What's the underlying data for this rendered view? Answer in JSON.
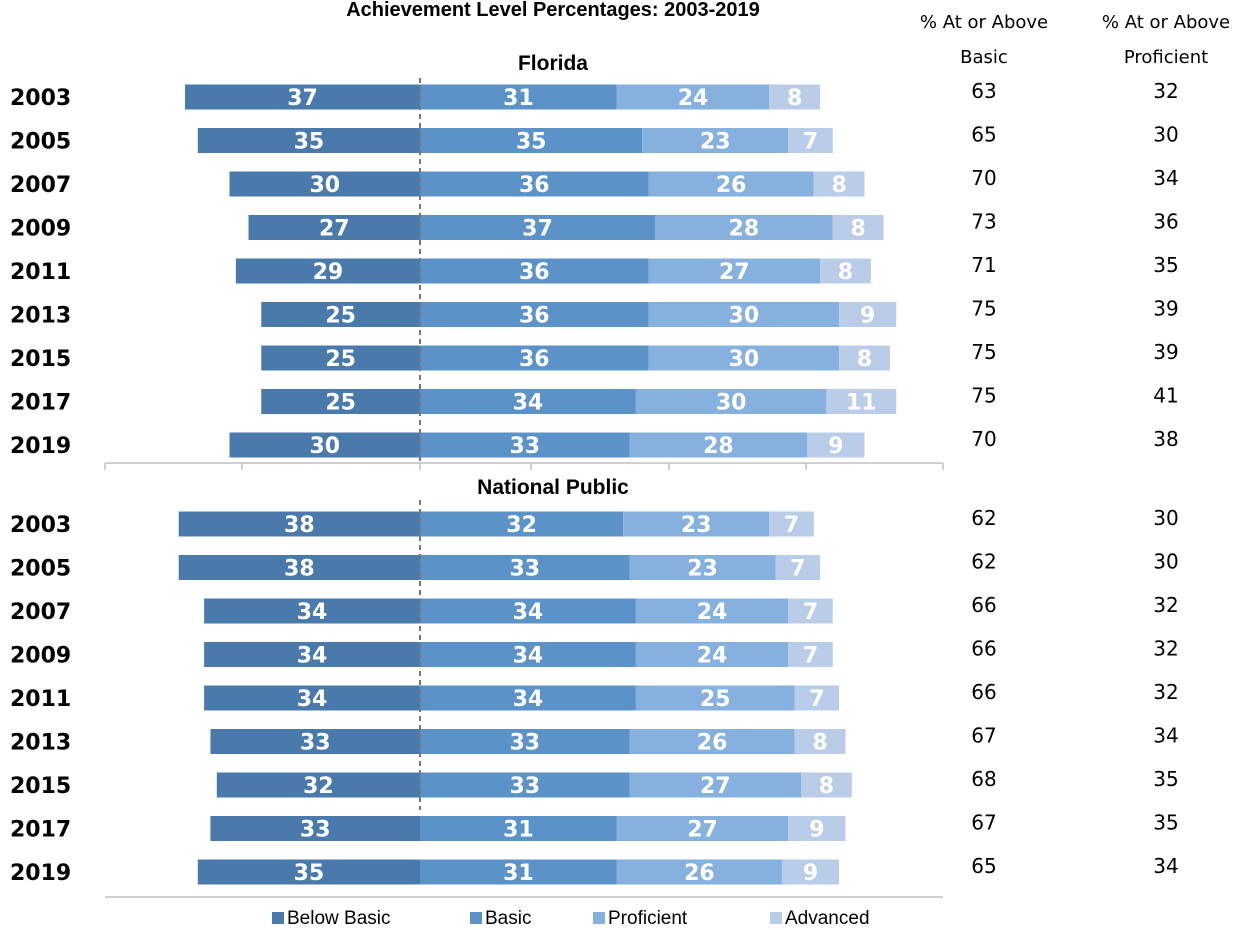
{
  "chart_data": {
    "type": "bar",
    "title": "Achievement Level Percentages: 2003-2019",
    "colors": {
      "Below Basic": "#4a7aab",
      "Basic": "#5b93c9",
      "Proficient": "#86b0de",
      "Advanced": "#b9cde9"
    },
    "legend": {
      "placement": "bottom",
      "entries": [
        "Below Basic",
        "Basic",
        "Proficient",
        "Advanced"
      ]
    },
    "columns": {
      "basic_header": [
        "% At or Above",
        "Basic"
      ],
      "proficient_header": [
        "% At or Above",
        "Proficient"
      ]
    },
    "panels": [
      {
        "name": "Florida",
        "categories": [
          "2003",
          "2005",
          "2007",
          "2009",
          "2011",
          "2013",
          "2015",
          "2017",
          "2019"
        ],
        "series": [
          {
            "name": "Below Basic",
            "values": [
              37,
              35,
              30,
              27,
              29,
              25,
              25,
              25,
              30
            ]
          },
          {
            "name": "Basic",
            "values": [
              31,
              35,
              36,
              37,
              36,
              36,
              36,
              34,
              33
            ]
          },
          {
            "name": "Proficient",
            "values": [
              24,
              23,
              26,
              28,
              27,
              30,
              30,
              30,
              28
            ]
          },
          {
            "name": "Advanced",
            "values": [
              8,
              7,
              8,
              8,
              8,
              9,
              8,
              11,
              9
            ]
          }
        ],
        "at_or_above_basic": [
          63,
          65,
          70,
          73,
          71,
          75,
          75,
          75,
          70
        ],
        "at_or_above_proficient": [
          32,
          30,
          34,
          36,
          35,
          39,
          39,
          41,
          38
        ]
      },
      {
        "name": "National Public",
        "categories": [
          "2003",
          "2005",
          "2007",
          "2009",
          "2011",
          "2013",
          "2015",
          "2017",
          "2019"
        ],
        "series": [
          {
            "name": "Below Basic",
            "values": [
              38,
              38,
              34,
              34,
              34,
              33,
              32,
              33,
              35
            ]
          },
          {
            "name": "Basic",
            "values": [
              32,
              33,
              34,
              34,
              34,
              33,
              33,
              31,
              31
            ]
          },
          {
            "name": "Proficient",
            "values": [
              23,
              23,
              24,
              24,
              25,
              26,
              27,
              27,
              26
            ]
          },
          {
            "name": "Advanced",
            "values": [
              7,
              7,
              7,
              7,
              7,
              8,
              8,
              9,
              9
            ]
          }
        ],
        "at_or_above_basic": [
          62,
          62,
          66,
          66,
          66,
          67,
          68,
          67,
          65
        ],
        "at_or_above_proficient": [
          30,
          30,
          32,
          32,
          32,
          34,
          35,
          35,
          34
        ]
      }
    ]
  }
}
